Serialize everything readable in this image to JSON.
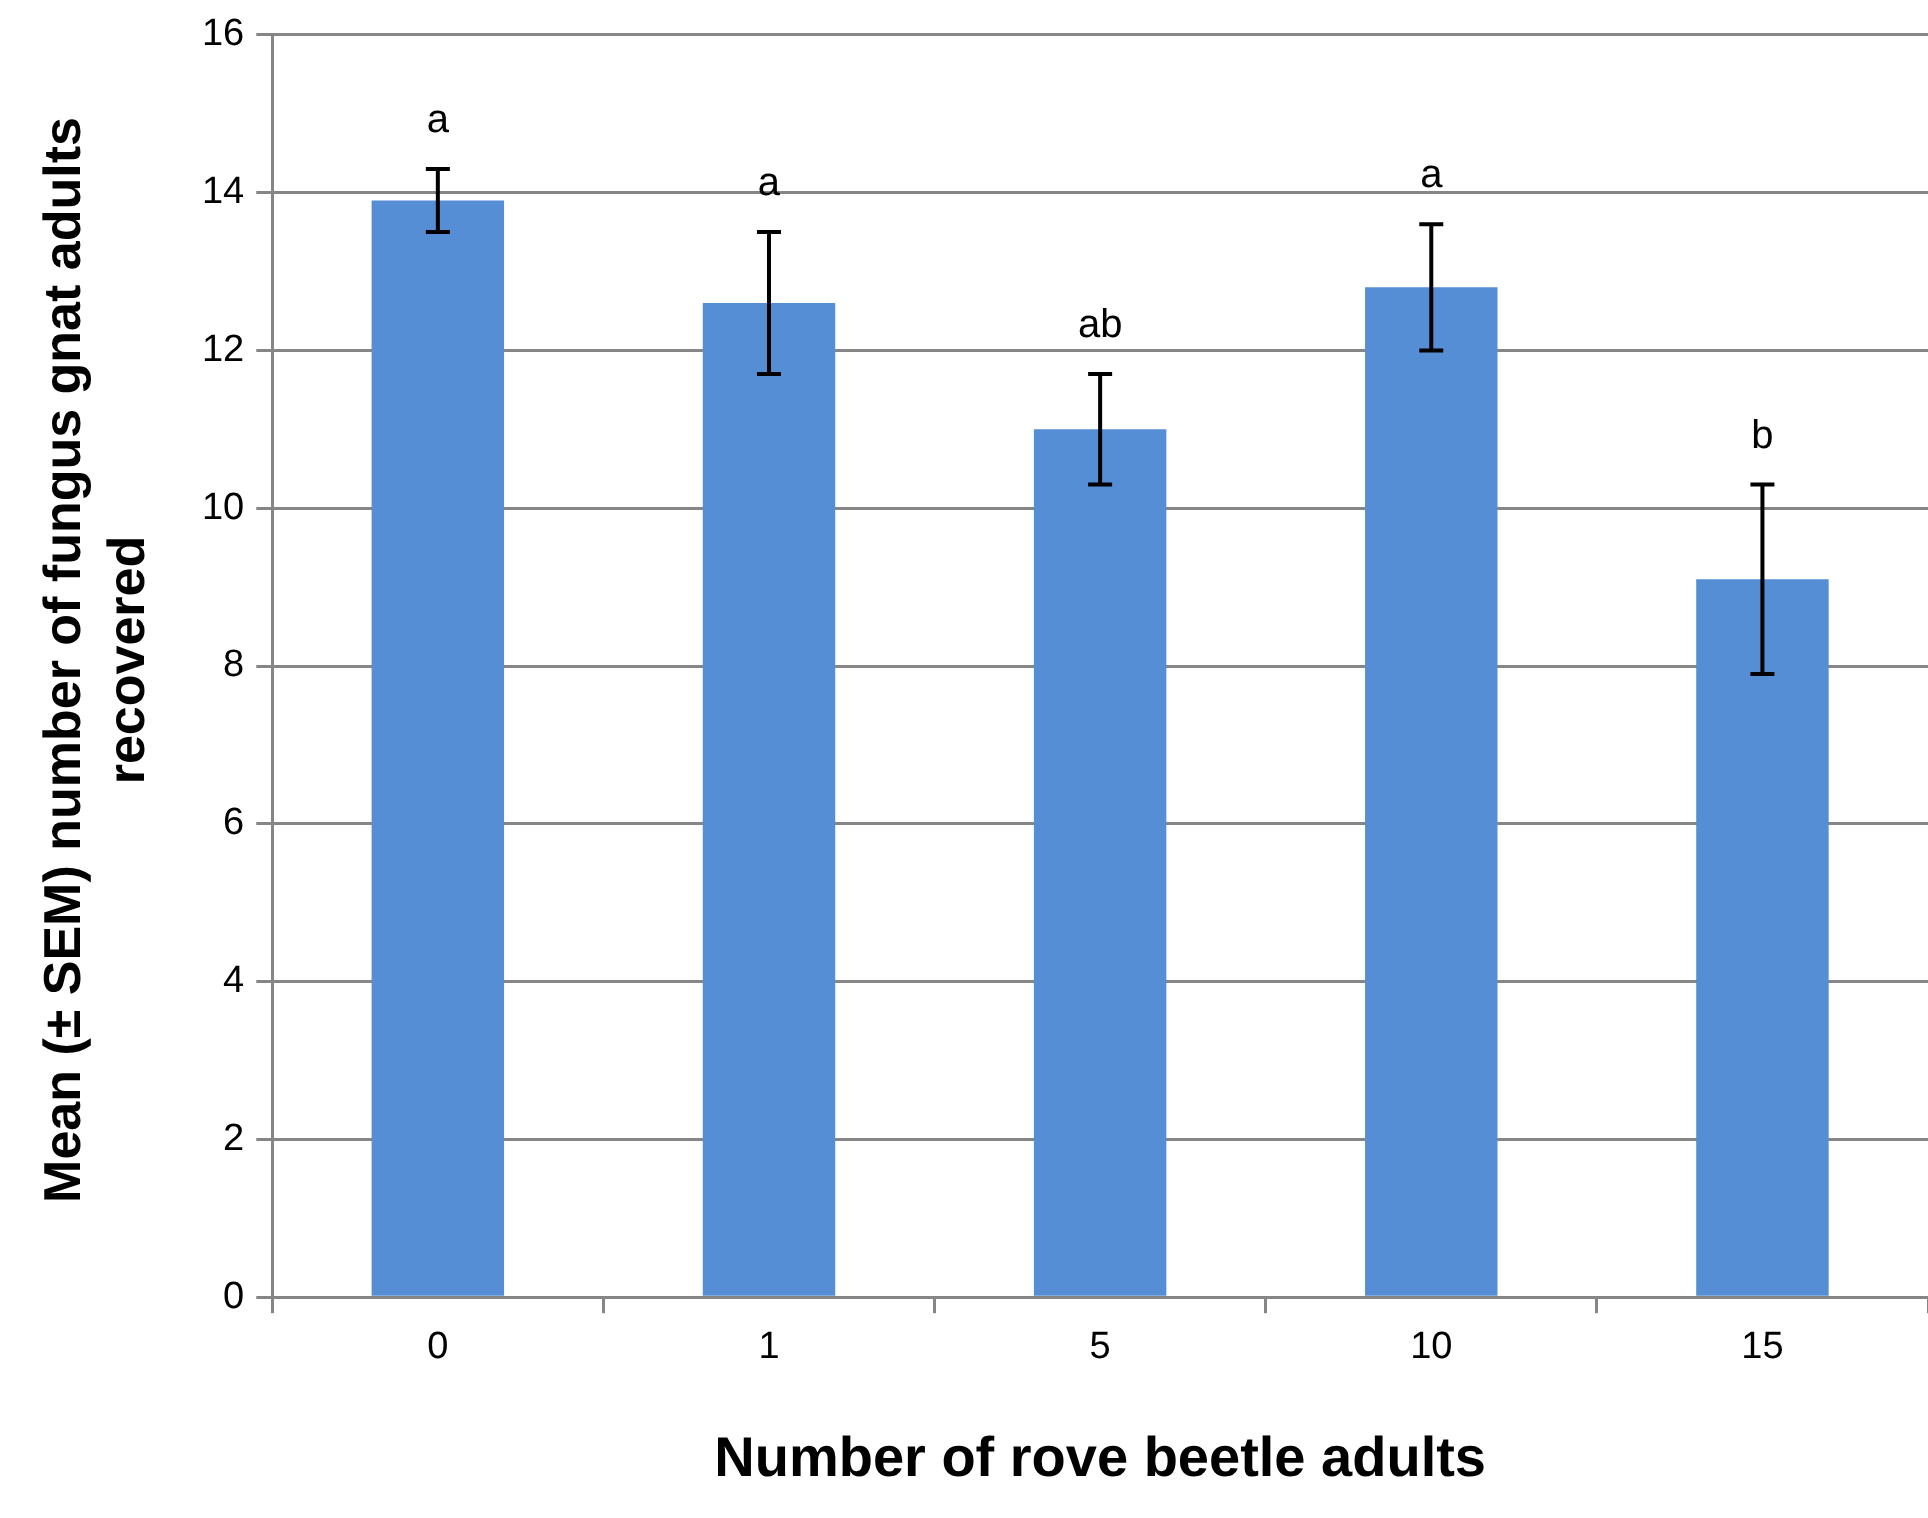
{
  "chart_data": {
    "type": "bar",
    "xlabel": "Number of rove beetle adults",
    "ylabel": "Mean (± SEM) number of fungus gnat adults recovered",
    "categories": [
      "0",
      "1",
      "5",
      "10",
      "15"
    ],
    "values": [
      13.9,
      12.6,
      11.0,
      12.8,
      9.1
    ],
    "errors": [
      0.4,
      0.9,
      0.7,
      0.8,
      1.2
    ],
    "color": "#558ed5",
    "ylim": [
      0,
      16
    ],
    "yticks": [
      0,
      2,
      4,
      6,
      8,
      10,
      12,
      14,
      16
    ],
    "grid": "y",
    "legend": false,
    "annotations": [
      {
        "text": "a",
        "x": "0",
        "y": 14.3
      },
      {
        "text": "a",
        "x": "1",
        "y": 13.5
      },
      {
        "text": "ab",
        "x": "5",
        "y": 11.7
      },
      {
        "text": "a",
        "x": "10",
        "y": 13.6
      },
      {
        "text": "b",
        "x": "15",
        "y": 10.3
      }
    ]
  }
}
